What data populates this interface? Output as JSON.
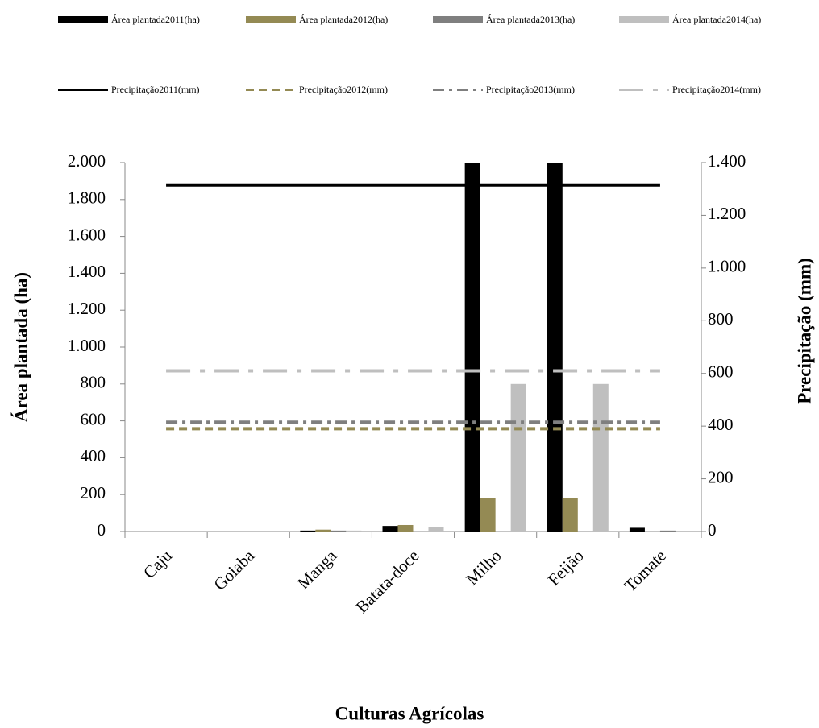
{
  "chart_data": {
    "type": "bar",
    "xlabel": "Culturas Agrícolas",
    "ylabel": "Área  plantada (ha)",
    "y2label": "Precipitação (mm)",
    "categories": [
      "Caju",
      "Goiaba",
      "Manga",
      "Batata-doce",
      "Milho",
      "Feijão",
      "Tomate"
    ],
    "series": [
      {
        "name": "Área plantada2011(ha)",
        "type": "bar",
        "color": "#000000",
        "values": [
          0,
          0,
          5,
          30,
          2000,
          2000,
          20
        ]
      },
      {
        "name": "Área plantada2012(ha)",
        "type": "bar",
        "color": "#948a54",
        "values": [
          0,
          0,
          10,
          35,
          180,
          180,
          0
        ]
      },
      {
        "name": "Área plantada2013(ha)",
        "type": "bar",
        "color": "#7f7f7f",
        "values": [
          0,
          0,
          5,
          0,
          0,
          0,
          5
        ]
      },
      {
        "name": "Área plantada2014(ha)",
        "type": "bar",
        "color": "#bfbfbf",
        "values": [
          0,
          0,
          5,
          25,
          800,
          800,
          0
        ]
      },
      {
        "name": "Precipitação2011(mm)",
        "type": "line",
        "axis": "y2",
        "dash": "solid",
        "color": "#000000",
        "values": [
          1315,
          1315,
          1315,
          1315,
          1315,
          1315,
          1315
        ]
      },
      {
        "name": "Precipitação2012(mm)",
        "type": "line",
        "axis": "y2",
        "dash": "dash",
        "color": "#948a54",
        "values": [
          390,
          390,
          390,
          390,
          390,
          390,
          390
        ]
      },
      {
        "name": "Precipitação2013(mm)",
        "type": "line",
        "axis": "y2",
        "dash": "dashdot",
        "color": "#7f7f7f",
        "values": [
          415,
          415,
          415,
          415,
          415,
          415,
          415
        ]
      },
      {
        "name": "Precipitação2014(mm)",
        "type": "line",
        "axis": "y2",
        "dash": "longdashdot",
        "color": "#bfbfbf",
        "values": [
          610,
          610,
          610,
          610,
          610,
          610,
          610
        ]
      }
    ],
    "ylim": [
      0,
      2000
    ],
    "yticks": [
      0,
      200,
      400,
      600,
      800,
      {
        "value": 1000,
        "label": "1.000"
      },
      {
        "value": 1200,
        "label": "1.200"
      },
      {
        "value": 1400,
        "label": "1.400"
      },
      {
        "value": 1600,
        "label": "1.600"
      },
      {
        "value": 1800,
        "label": "1.800"
      },
      {
        "value": 2000,
        "label": "2.000"
      }
    ],
    "y2lim": [
      0,
      1400
    ],
    "y2ticks": [
      0,
      200,
      400,
      600,
      800,
      {
        "value": 1000,
        "label": "1.000"
      },
      {
        "value": 1200,
        "label": "1.200"
      },
      {
        "value": 1400,
        "label": "1.400"
      }
    ],
    "grid": false,
    "legend": "top"
  }
}
